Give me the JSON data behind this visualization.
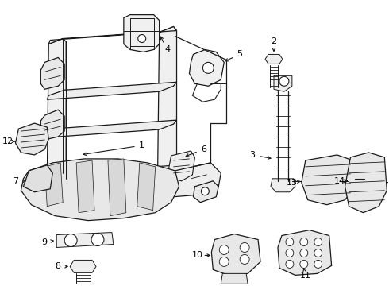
{
  "background_color": "#ffffff",
  "fig_width": 4.9,
  "fig_height": 3.6,
  "dpi": 100,
  "line_color": "#1a1a1a",
  "line_width": 0.9
}
